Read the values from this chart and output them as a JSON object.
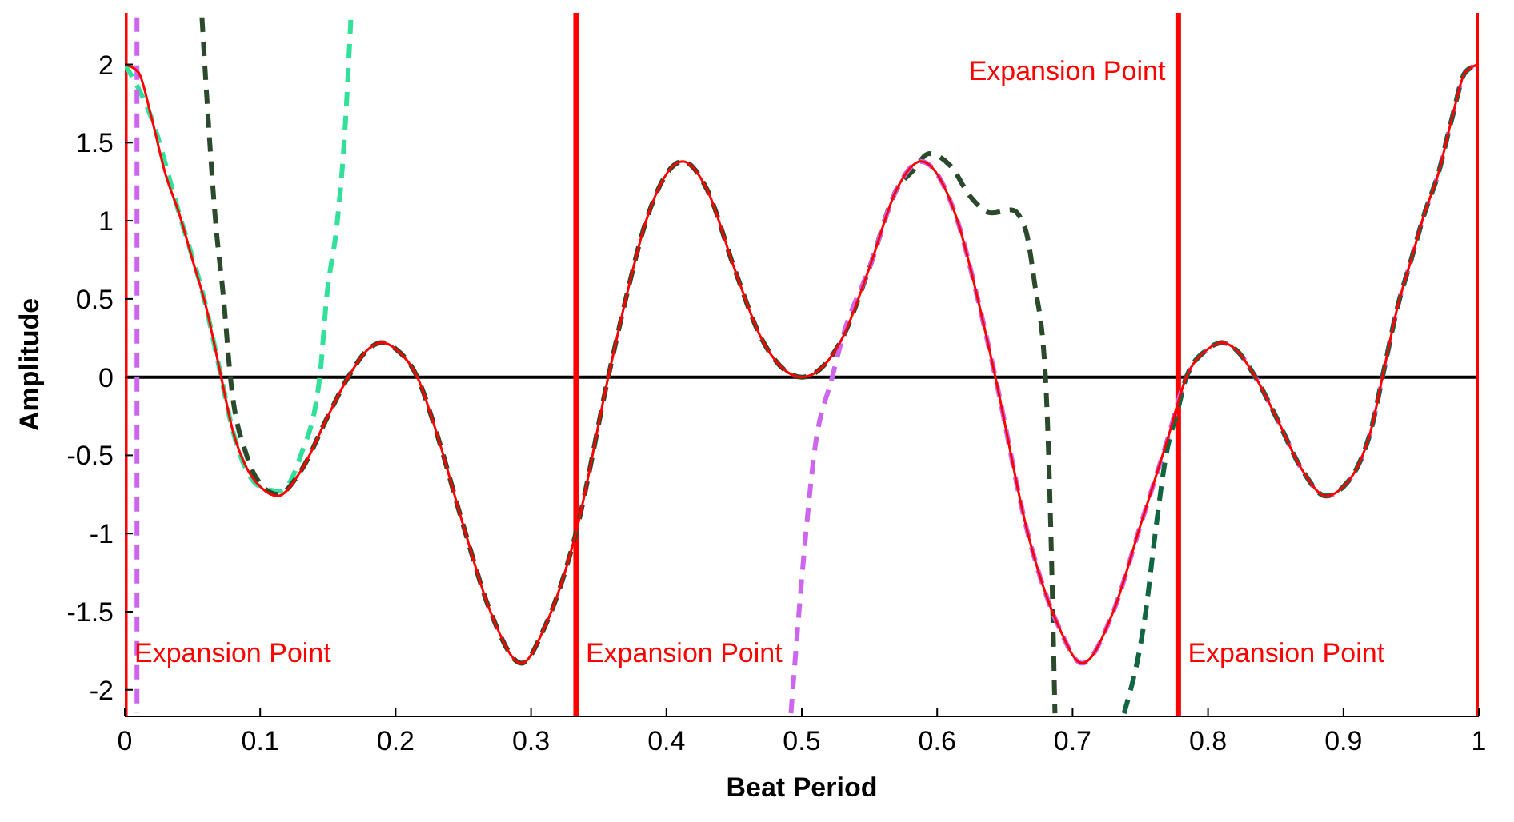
{
  "chart_data": {
    "type": "line",
    "xlabel": "Beat Period",
    "ylabel": "Amplitude",
    "xlim": [
      0,
      1
    ],
    "ylim": [
      -2.17,
      2.33
    ],
    "xticks": [
      0,
      0.1,
      0.2,
      0.3,
      0.4,
      0.5,
      0.6,
      0.7,
      0.8,
      0.9,
      1
    ],
    "yticks": [
      -2,
      -1.5,
      -1,
      -0.5,
      0,
      0.5,
      1,
      1.5,
      2
    ],
    "marker": "none",
    "series": [
      {
        "color": "#33e09a",
        "line_style": "dashed",
        "x": [
          0,
          0.02,
          0.04,
          0.06,
          0.07,
          0.08,
          0.1,
          0.115,
          0.13,
          0.144,
          0.149,
          0.157,
          0.162,
          0.167
        ],
        "values": [
          2.0,
          1.65,
          1.05,
          0.45,
          0.05,
          -0.35,
          -0.7,
          -0.73,
          -0.5,
          0,
          0.5,
          1.0,
          1.5,
          2.3
        ]
      },
      {
        "color": "#2b4a2b",
        "line_style": "dashed",
        "x": [
          0.057,
          0.062,
          0.067,
          0.073,
          0.078,
          0.09,
          0.1,
          0.113,
          0.13,
          0.15,
          0.165,
          0.18,
          0.19,
          0.2,
          0.216,
          0.23,
          0.25,
          0.27,
          0.293,
          0.31,
          0.333,
          0.357,
          0.37,
          0.385,
          0.412,
          0.43,
          0.45,
          0.47,
          0.5,
          0.53,
          0.55,
          0.57,
          0.582,
          0.594,
          0.61,
          0.625,
          0.64,
          0.655,
          0.665,
          0.672,
          0.68,
          0.684,
          0.687
        ],
        "values": [
          2.3,
          1.6,
          1.0,
          0.5,
          0,
          -0.5,
          -0.68,
          -0.75,
          -0.6,
          -0.25,
          0,
          0.18,
          0.22,
          0.18,
          0,
          -0.35,
          -0.95,
          -1.5,
          -1.83,
          -1.6,
          -1.0,
          0,
          0.5,
          1.0,
          1.38,
          1.2,
          0.7,
          0.25,
          0,
          0.25,
          0.7,
          1.2,
          1.32,
          1.43,
          1.35,
          1.15,
          1.05,
          1.07,
          0.95,
          0.6,
          0,
          -1.0,
          -2.15
        ]
      },
      {
        "color": "#cc66ee",
        "line_style": "dashed",
        "x": [
          0.009,
          0.009,
          0.2,
          0.492,
          0.503,
          0.509,
          0.5225,
          0.53,
          0.55,
          0.57,
          0.588,
          0.615,
          0.63,
          0.643,
          0.667,
          0.69,
          0.707,
          0.73,
          0.75,
          0.77,
          0.784,
          0.8,
          0.81,
          0.82,
          0.835,
          0.85,
          0.87,
          0.887,
          0.9,
          0.91,
          0.92,
          0.93,
          0.94,
          0.95,
          0.96,
          0.97,
          0.98,
          0.99,
          1
        ],
        "values": [
          2.3,
          -2.15,
          null,
          -2.15,
          -1.0,
          -0.5,
          0,
          0.25,
          0.7,
          1.2,
          1.38,
          1.0,
          0.5,
          0,
          -1.0,
          -1.6,
          -1.83,
          -1.5,
          -0.95,
          -0.4,
          0,
          0.18,
          0.22,
          0.18,
          0,
          -0.25,
          -0.6,
          -0.76,
          -0.7,
          -0.58,
          -0.35,
          0.05,
          0.45,
          0.75,
          1.05,
          1.3,
          1.65,
          1.95,
          2.0
        ]
      },
      {
        "color": "#0f6640",
        "line_style": "dashed",
        "x": [
          0.738,
          0.754,
          0.761,
          0.769,
          0.778,
          0.784,
          0.8,
          0.81,
          0.82,
          0.835,
          0.85,
          0.87,
          0.887,
          0.9,
          0.91,
          0.92,
          0.93,
          0.94,
          0.95,
          0.96,
          0.97,
          0.98,
          0.99,
          1
        ],
        "values": [
          -2.15,
          -1.5,
          -1.0,
          -0.5,
          -0.2,
          0,
          0.18,
          0.22,
          0.18,
          0,
          -0.25,
          -0.6,
          -0.76,
          -0.7,
          -0.58,
          -0.35,
          0.05,
          0.45,
          0.75,
          1.05,
          1.3,
          1.65,
          1.95,
          2.0
        ]
      },
      {
        "color": "#ff0000",
        "line_style": "solid",
        "x": [
          0,
          0.01,
          0.02,
          0.03,
          0.04,
          0.05,
          0.06,
          0.07,
          0.08,
          0.09,
          0.1,
          0.113,
          0.13,
          0.15,
          0.165,
          0.18,
          0.19,
          0.2,
          0.216,
          0.23,
          0.25,
          0.27,
          0.293,
          0.31,
          0.333,
          0.357,
          0.37,
          0.385,
          0.412,
          0.43,
          0.45,
          0.47,
          0.5,
          0.53,
          0.55,
          0.57,
          0.588,
          0.615,
          0.63,
          0.643,
          0.667,
          0.69,
          0.707,
          0.73,
          0.75,
          0.77,
          0.784,
          0.8,
          0.81,
          0.82,
          0.835,
          0.85,
          0.87,
          0.887,
          0.9,
          0.91,
          0.92,
          0.93,
          0.94,
          0.95,
          0.96,
          0.97,
          0.98,
          0.99,
          1
        ],
        "values": [
          2.0,
          1.95,
          1.65,
          1.3,
          1.05,
          0.75,
          0.45,
          0.05,
          -0.35,
          -0.58,
          -0.7,
          -0.76,
          -0.6,
          -0.25,
          0,
          0.18,
          0.22,
          0.18,
          0,
          -0.35,
          -0.95,
          -1.5,
          -1.83,
          -1.6,
          -1.0,
          0,
          0.5,
          1.0,
          1.38,
          1.2,
          0.7,
          0.25,
          0,
          0.25,
          0.7,
          1.2,
          1.38,
          1.0,
          0.5,
          0,
          -1.0,
          -1.6,
          -1.83,
          -1.5,
          -0.95,
          -0.4,
          0,
          0.18,
          0.22,
          0.18,
          0,
          -0.25,
          -0.6,
          -0.76,
          -0.7,
          -0.58,
          -0.35,
          0.05,
          0.45,
          0.75,
          1.05,
          1.3,
          1.65,
          1.95,
          2.0
        ]
      }
    ],
    "ref_lines": [
      {
        "axis": "y",
        "value": 0,
        "color": "#000000"
      },
      {
        "axis": "x",
        "value": 0,
        "label": "Expansion Point",
        "color": "#ff0000"
      },
      {
        "axis": "x",
        "value": 0.3333,
        "label": "Expansion Point",
        "color": "#ff0000"
      },
      {
        "axis": "x",
        "value": 0.778,
        "label": "Expansion Point",
        "color": "#ff0000"
      },
      {
        "axis": "x",
        "value": 1,
        "color": "#ff0000"
      }
    ],
    "annotations": [
      "Expansion Point"
    ]
  }
}
